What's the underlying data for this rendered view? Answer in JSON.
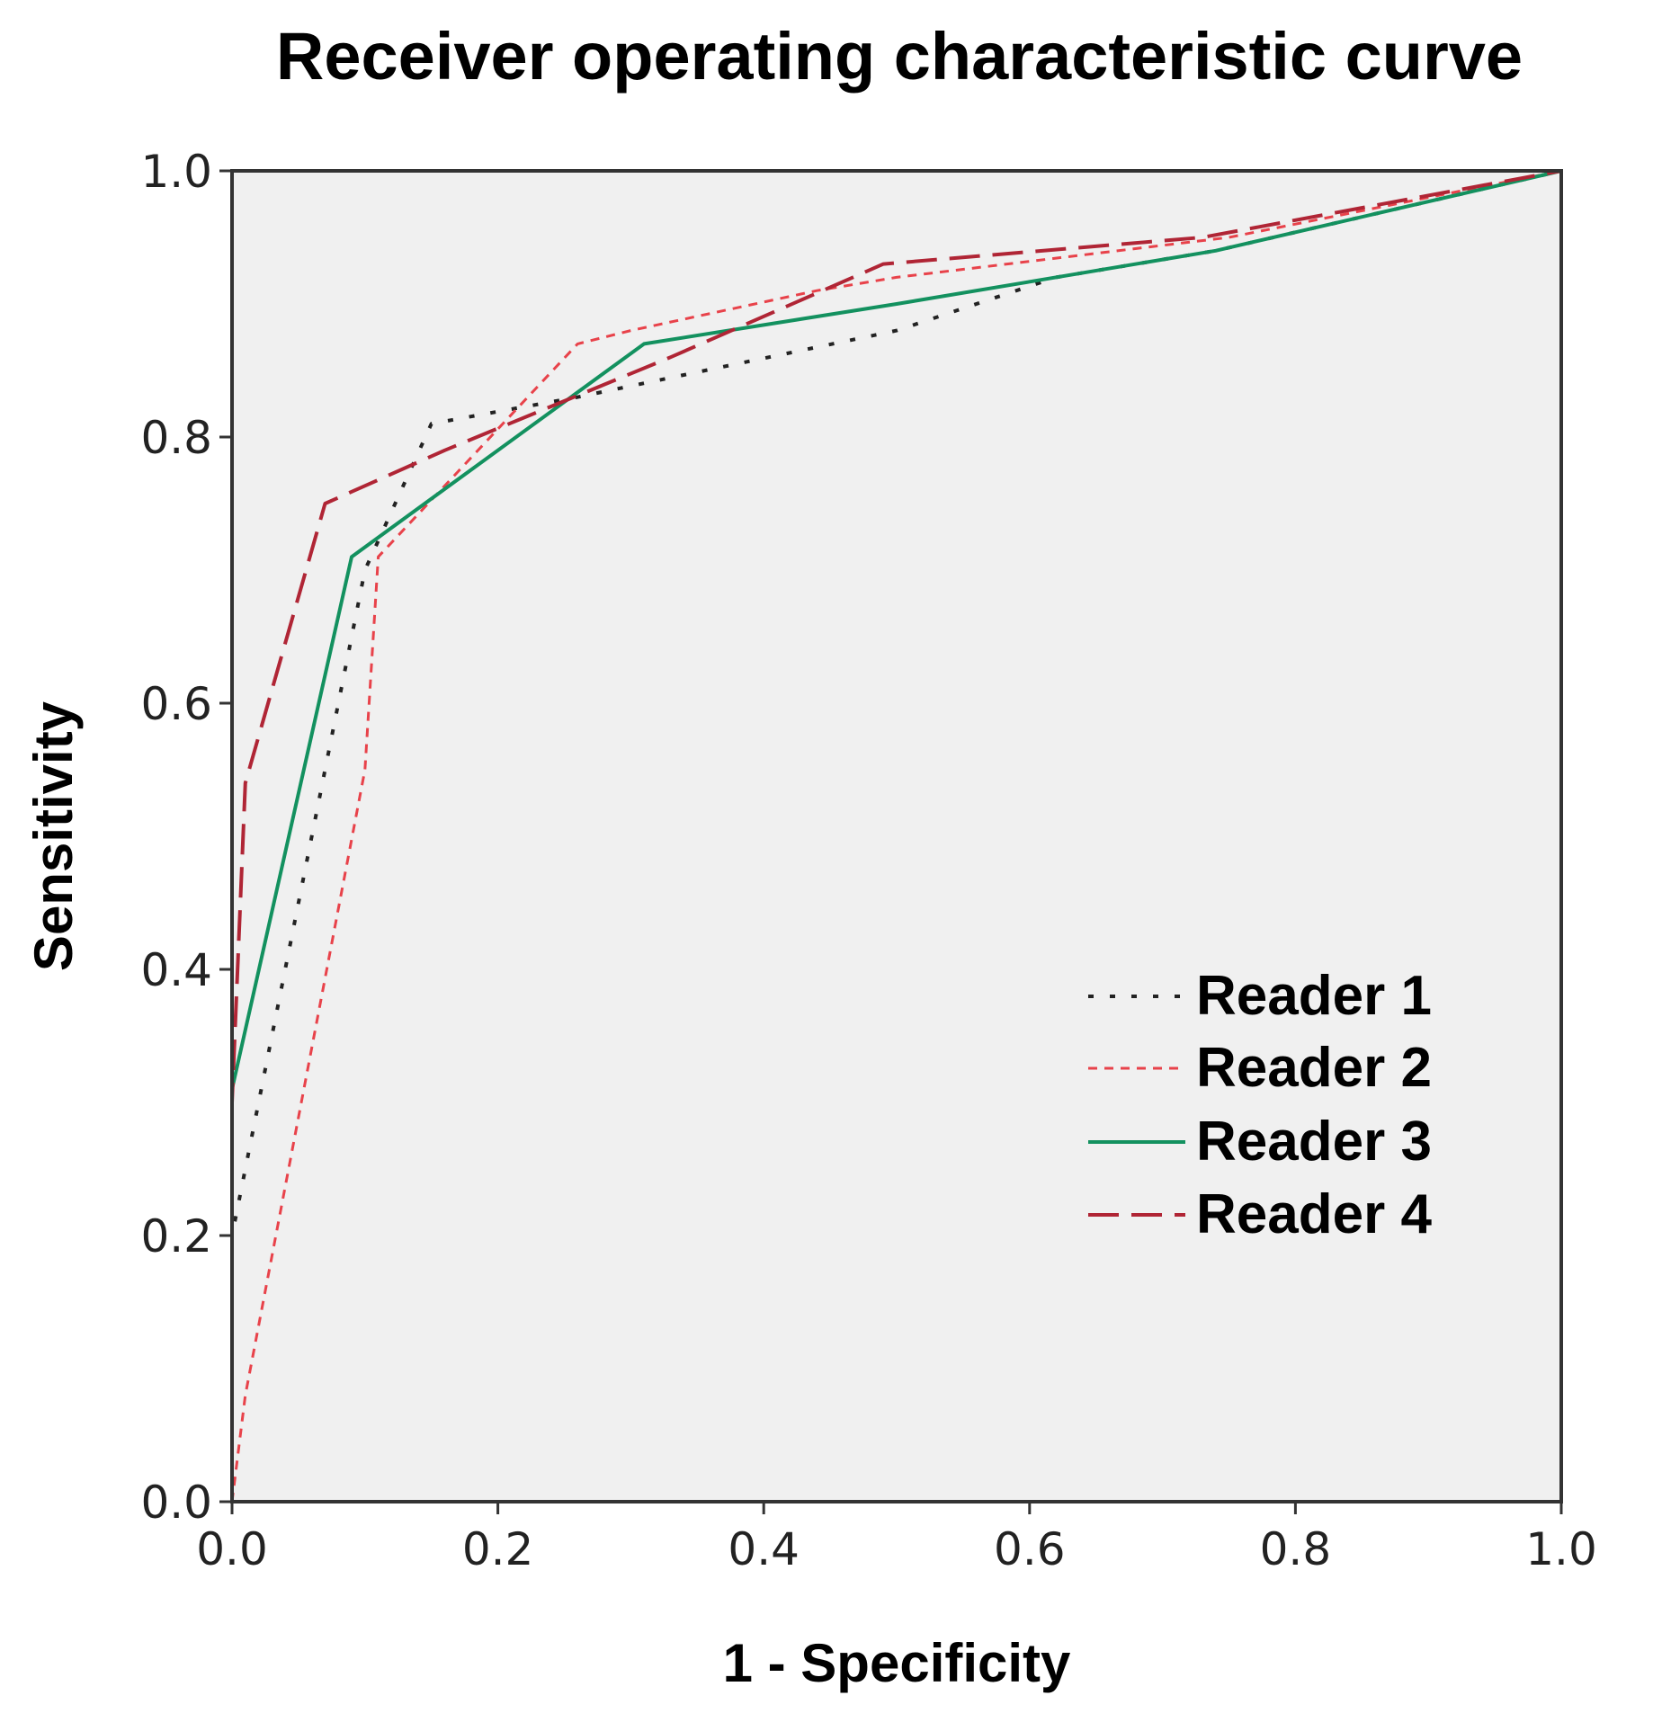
{
  "chart_data": {
    "type": "line",
    "title": "Receiver operating characteristic curve",
    "xlabel": "1 - Specificity",
    "ylabel": "Sensitivity",
    "xlim": [
      0.0,
      1.0
    ],
    "ylim": [
      0.0,
      1.0
    ],
    "xticks": [
      "0.0",
      "0.2",
      "0.4",
      "0.6",
      "0.8",
      "1.0"
    ],
    "yticks": [
      "0.0",
      "0.2",
      "0.4",
      "0.6",
      "0.8",
      "1.0"
    ],
    "grid": false,
    "plot_background": "#f0f0f0",
    "legend_position": "bottom-right",
    "series": [
      {
        "name": "Reader 1",
        "color": "#222222",
        "style": "dotted",
        "x": [
          0.0,
          0.0,
          0.1,
          0.15,
          0.26,
          0.5,
          0.62,
          0.74,
          1.0
        ],
        "y": [
          0.0,
          0.2,
          0.7,
          0.81,
          0.83,
          0.88,
          0.92,
          0.94,
          1.0
        ]
      },
      {
        "name": "Reader 2",
        "color": "#e8424a",
        "style": "short-dash",
        "x": [
          0.0,
          0.01,
          0.1,
          0.11,
          0.26,
          0.3,
          0.44,
          0.5,
          0.75,
          1.0
        ],
        "y": [
          0.0,
          0.08,
          0.55,
          0.71,
          0.87,
          0.88,
          0.91,
          0.92,
          0.95,
          1.0
        ]
      },
      {
        "name": "Reader 3",
        "color": "#13915f",
        "style": "solid",
        "x": [
          0.0,
          0.0,
          0.09,
          0.31,
          0.5,
          0.74,
          1.0
        ],
        "y": [
          0.0,
          0.31,
          0.71,
          0.87,
          0.9,
          0.94,
          1.0
        ]
      },
      {
        "name": "Reader 4",
        "color": "#b02535",
        "style": "long-dash",
        "x": [
          0.0,
          0.0,
          0.01,
          0.07,
          0.16,
          0.33,
          0.49,
          0.73,
          1.0
        ],
        "y": [
          0.0,
          0.3,
          0.54,
          0.75,
          0.79,
          0.86,
          0.93,
          0.95,
          1.0
        ]
      }
    ]
  }
}
